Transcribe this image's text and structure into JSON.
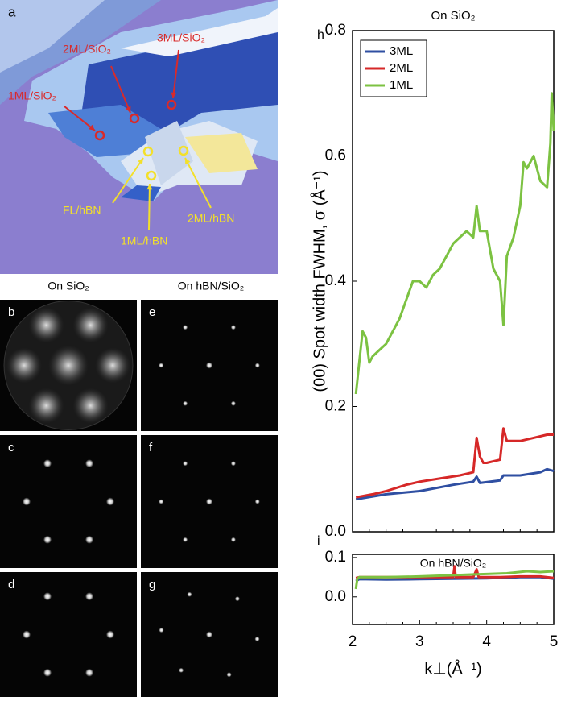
{
  "panels": {
    "a": {
      "letter": "a",
      "labels": [
        "1ML/SiO₂",
        "2ML/SiO₂",
        "3ML/SiO₂",
        "FL/hBN",
        "1ML/hBN",
        "2ML/hBN"
      ]
    },
    "col_headers": [
      "On SiO₂",
      "On hBN/SiO₂"
    ],
    "letters": [
      "b",
      "c",
      "d",
      "e",
      "f",
      "g"
    ]
  },
  "chart_data": [
    {
      "type": "line",
      "letter": "h",
      "title": "On SiO₂",
      "y_label": "(00) Spot width FWHM, σ (Å⁻¹)",
      "xlim": [
        2,
        5
      ],
      "ylim": [
        0,
        0.8
      ],
      "yticks": [
        {
          "value": 0,
          "label": "0.0"
        },
        0.2,
        0.4,
        0.6,
        0.8
      ],
      "legend": "top-left",
      "series": [
        {
          "name": "3ML",
          "color": "#2f4fa2",
          "x": [
            2.05,
            2.5,
            3.0,
            3.5,
            3.8,
            3.85,
            3.9,
            4.2,
            4.25,
            4.5,
            4.8,
            4.9,
            5.0
          ],
          "values": [
            0.052,
            0.06,
            0.065,
            0.075,
            0.08,
            0.088,
            0.078,
            0.082,
            0.09,
            0.09,
            0.095,
            0.1,
            0.097
          ]
        },
        {
          "name": "2ML",
          "color": "#d62828",
          "x": [
            2.05,
            2.3,
            2.5,
            2.8,
            3.0,
            3.3,
            3.6,
            3.8,
            3.85,
            3.9,
            3.95,
            4.0,
            4.2,
            4.25,
            4.3,
            4.5,
            4.7,
            4.9,
            5.0
          ],
          "values": [
            0.055,
            0.06,
            0.065,
            0.075,
            0.08,
            0.085,
            0.09,
            0.095,
            0.15,
            0.12,
            0.11,
            0.11,
            0.115,
            0.165,
            0.145,
            0.145,
            0.15,
            0.155,
            0.155
          ]
        },
        {
          "name": "1ML",
          "color": "#7cc242",
          "x": [
            2.05,
            2.1,
            2.15,
            2.2,
            2.25,
            2.3,
            2.4,
            2.5,
            2.6,
            2.7,
            2.8,
            2.9,
            3.0,
            3.1,
            3.2,
            3.3,
            3.4,
            3.5,
            3.6,
            3.7,
            3.8,
            3.85,
            3.9,
            4.0,
            4.05,
            4.1,
            4.2,
            4.25,
            4.3,
            4.4,
            4.5,
            4.55,
            4.6,
            4.7,
            4.8,
            4.9,
            4.95,
            4.97,
            5.0
          ],
          "values": [
            0.22,
            0.27,
            0.32,
            0.31,
            0.27,
            0.28,
            0.29,
            0.3,
            0.32,
            0.34,
            0.37,
            0.4,
            0.4,
            0.39,
            0.41,
            0.42,
            0.44,
            0.46,
            0.47,
            0.48,
            0.47,
            0.52,
            0.48,
            0.48,
            0.45,
            0.42,
            0.4,
            0.33,
            0.44,
            0.47,
            0.52,
            0.59,
            0.58,
            0.6,
            0.56,
            0.55,
            0.62,
            0.7,
            0.64
          ]
        }
      ]
    },
    {
      "type": "line",
      "letter": "i",
      "title": "On hBN/SiO₂",
      "x_label": "k⊥(Å⁻¹)",
      "xlim": [
        2,
        5
      ],
      "ylim": [
        -0.07,
        0.108
      ],
      "xticks": [
        2,
        3,
        4,
        5
      ],
      "yticks": [
        {
          "value": 0,
          "label": "0.0"
        },
        0.1
      ],
      "series": [
        {
          "color": "#2f4fa2",
          "x": [
            2.05,
            2.1,
            2.5,
            3.0,
            3.5,
            4.0,
            4.5,
            4.8,
            5.0
          ],
          "values": [
            0.04,
            0.045,
            0.044,
            0.045,
            0.046,
            0.047,
            0.05,
            0.05,
            0.046
          ]
        },
        {
          "color": "#d62828",
          "x": [
            2.05,
            2.1,
            2.5,
            3.0,
            3.5,
            3.52,
            3.54,
            3.8,
            3.85,
            3.88,
            4.2,
            4.5,
            4.8,
            5.0
          ],
          "values": [
            0.048,
            0.05,
            0.05,
            0.05,
            0.05,
            0.078,
            0.05,
            0.05,
            0.07,
            0.05,
            0.05,
            0.052,
            0.052,
            0.048
          ]
        },
        {
          "color": "#7cc242",
          "x": [
            2.05,
            2.07,
            2.1,
            2.5,
            3.0,
            3.5,
            3.8,
            4.0,
            4.3,
            4.6,
            4.8,
            5.0
          ],
          "values": [
            0.02,
            0.045,
            0.05,
            0.05,
            0.052,
            0.055,
            0.057,
            0.058,
            0.06,
            0.065,
            0.063,
            0.065
          ]
        }
      ]
    }
  ]
}
